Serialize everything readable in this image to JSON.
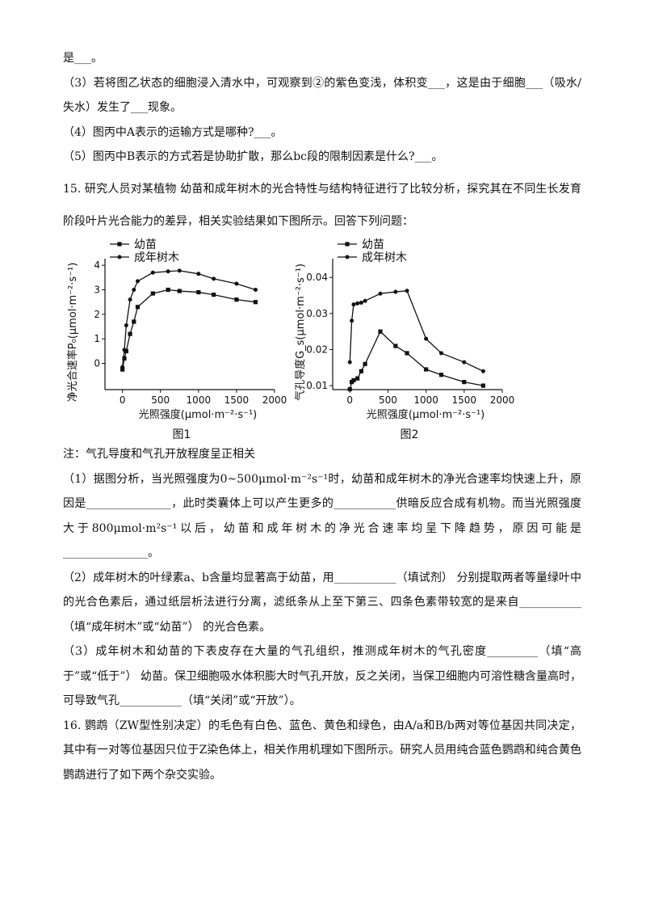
{
  "text_before": [
    "是___。",
    "（3）若将图乙状态的细胞浸入清水中，可观察到②的紫色变浅，体积变___，这是由于细胞___（吸水/失水）发生了___现象。",
    "（4）图丙中A表示的运输方式是哪种?___。",
    "（5）图丙中B表示的方式若是协助扩散，那么bc段的限制因素是什么?___。",
    "15. 研究人员对某植物        幼苗和成年树木的光合特性与结构特征进行了比较分析，探究其在不同生长发育阶段叶片光合能力的差异，相关实验结果如下图所示。回答下列问题："
  ],
  "figures": [
    {
      "type": "line",
      "title": "图1",
      "xlabel": "光照强度(μmol·m⁻²·s⁻¹)",
      "ylabel": "净光合速率P₀(μmol·m⁻²·s⁻¹)",
      "x": [
        0,
        25,
        50,
        100,
        150,
        200,
        400,
        600,
        750,
        1000,
        1200,
        1500,
        1750
      ],
      "series": [
        {
          "name": "幼苗",
          "marker": "square",
          "color": "#111111",
          "values": [
            -0.25,
            0.2,
            0.5,
            1.2,
            1.7,
            2.3,
            2.85,
            3.0,
            2.95,
            2.9,
            2.8,
            2.6,
            2.5
          ]
        },
        {
          "name": "成年树木",
          "marker": "circle",
          "color": "#111111",
          "values": [
            -0.15,
            0.55,
            1.55,
            2.6,
            3.0,
            3.35,
            3.7,
            3.75,
            3.78,
            3.65,
            3.45,
            3.25,
            3.0
          ]
        }
      ],
      "xlim": [
        -230,
        2000
      ],
      "xticks": [
        0,
        500,
        1000,
        1500,
        2000
      ],
      "ylim": [
        -1.07,
        4.27
      ],
      "yticks": [
        0,
        1,
        2,
        3,
        4
      ]
    },
    {
      "type": "line",
      "title": "图2",
      "xlabel": "光照强度(μmol·m⁻²·s⁻¹)",
      "ylabel": "气孔导度G_s(μmol·m⁻²·s⁻¹)",
      "x": [
        0,
        25,
        50,
        100,
        150,
        200,
        400,
        600,
        750,
        1000,
        1200,
        1500,
        1750
      ],
      "series": [
        {
          "name": "幼苗",
          "marker": "square",
          "color": "#111111",
          "values": [
            0.009,
            0.011,
            0.0115,
            0.012,
            0.014,
            0.016,
            0.025,
            0.021,
            0.019,
            0.0145,
            0.013,
            0.011,
            0.01
          ]
        },
        {
          "name": "成年树木",
          "marker": "circle",
          "color": "#111111",
          "values": [
            0.0165,
            0.028,
            0.0325,
            0.0328,
            0.033,
            0.0335,
            0.0355,
            0.036,
            0.0363,
            0.023,
            0.019,
            0.0165,
            0.014
          ]
        }
      ],
      "xlim": [
        -225,
        2000
      ],
      "xticks": [
        0,
        500,
        1000,
        1500,
        2000
      ],
      "ylim": [
        0.0089,
        0.0452
      ],
      "yticks": [
        0.01,
        0.02,
        0.03,
        0.04
      ]
    }
  ],
  "text_after": [
    "注：气孔导度和气孔开放程度呈正相关",
    "（1）据图分析，当光照强度为0~500μmol·m⁻²s⁻¹时，幼苗和成年树木的净光合速率均快速上升，原因是_______________，此时类囊体上可以产生更多的___________供暗反应合成有机物。而当光照强度大于800μmol·m²s⁻¹以后，幼苗和成年树木的净光合速率均呈下降趋势，原因可能是_______________。",
    "（2）成年树木的叶绿素a、b含量均显著高于幼苗，用___________（填试剂） 分别提取两者等量绿叶中的光合色素后，通过纸层析法进行分离，滤纸条从上至下第三、四条色素带较宽的是来自___________（填“成年树木”或“幼苗”） 的光合色素。",
    "（3）成年树木和幼苗的下表皮存在大量的气孔组织，推测成年树木的气孔密度_________（填“高于”或“低于”） 幼苗。保卫细胞吸水体积膨大时气孔开放，反之关闭，当保卫细胞内可溶性糖含量高时，可导致气孔___________（填“关闭”或“开放”）。",
    "16. 鹦鹉（ZW型性别决定）的毛色有白色、蓝色、黄色和绿色，由A/a和B/b两对等位基因共同决定，其中有一对等位基因只位于Z染色体上，相关作用机理如下图所示。研究人员用纯合蓝色鹦鹉和纯合黄色鹦鹉进行了如下两个杂交实验。"
  ]
}
